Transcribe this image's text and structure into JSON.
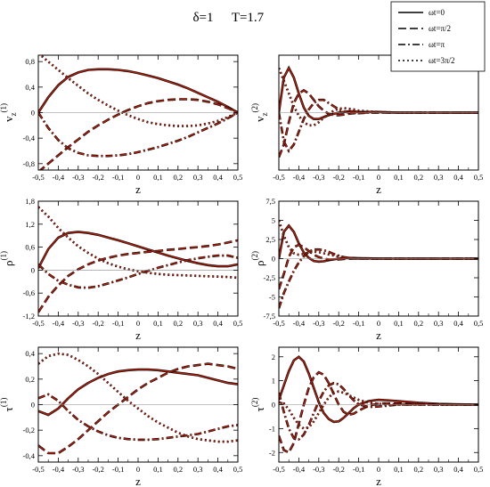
{
  "title": {
    "delta": "δ=1",
    "temp": "T=1.7"
  },
  "legend": [
    {
      "label": "ωt=0",
      "dash": "solid"
    },
    {
      "label": "ωt=π/2",
      "dash": "dashed"
    },
    {
      "label": "ωt=π",
      "dash": "dashdot"
    },
    {
      "label": "ωt=3π/2",
      "dash": "dotted"
    }
  ],
  "colors": {
    "black": "#000000",
    "red": "#b2220e",
    "band": "#f6c8ee"
  },
  "chart_data": [
    {
      "id": "p11",
      "type": "line",
      "xlabel": "z",
      "ylabel": "v",
      "ylabel_sub": "z",
      "ylabel_sup": "(1)",
      "xlim": [
        -0.5,
        0.5
      ],
      "ylim": [
        -0.9,
        0.9
      ],
      "xticks": [
        "-0,5",
        "-0,4",
        "-0,3",
        "-0,2",
        "-0,1",
        "0",
        "0,1",
        "0,2",
        "0,3",
        "0,4",
        "0,5"
      ],
      "yticks": [
        "-0,8",
        "-0,4",
        "0",
        "0,4",
        "0,8"
      ],
      "x": [
        -0.5,
        -0.45,
        -0.4,
        -0.35,
        -0.3,
        -0.25,
        -0.2,
        -0.15,
        -0.1,
        -0.05,
        0,
        0.05,
        0.1,
        0.15,
        0.2,
        0.25,
        0.3,
        0.35,
        0.4,
        0.45,
        0.5
      ],
      "series": [
        {
          "dash": "solid",
          "values": [
            0,
            0.24,
            0.43,
            0.56,
            0.63,
            0.67,
            0.68,
            0.68,
            0.67,
            0.65,
            0.62,
            0.58,
            0.54,
            0.49,
            0.44,
            0.38,
            0.31,
            0.24,
            0.17,
            0.09,
            0
          ]
        },
        {
          "dash": "dashed",
          "values": [
            -0.93,
            -0.8,
            -0.67,
            -0.54,
            -0.42,
            -0.3,
            -0.2,
            -0.11,
            -0.03,
            0.04,
            0.1,
            0.15,
            0.18,
            0.2,
            0.21,
            0.21,
            0.2,
            0.17,
            0.13,
            0.07,
            0
          ]
        },
        {
          "dash": "dashdot",
          "values": [
            0,
            -0.24,
            -0.43,
            -0.56,
            -0.63,
            -0.67,
            -0.68,
            -0.68,
            -0.67,
            -0.65,
            -0.62,
            -0.58,
            -0.54,
            -0.49,
            -0.44,
            -0.38,
            -0.31,
            -0.24,
            -0.17,
            -0.09,
            0
          ]
        },
        {
          "dash": "dotted",
          "values": [
            0.93,
            0.8,
            0.67,
            0.54,
            0.42,
            0.3,
            0.2,
            0.11,
            0.03,
            -0.04,
            -0.1,
            -0.15,
            -0.18,
            -0.2,
            -0.21,
            -0.21,
            -0.2,
            -0.17,
            -0.13,
            -0.07,
            0
          ]
        }
      ]
    },
    {
      "id": "p12",
      "type": "line",
      "xlabel": "z",
      "ylabel": "v",
      "ylabel_sub": "z",
      "ylabel_sup": "(2)",
      "xlim": [
        -0.5,
        0.5
      ],
      "ylim": [
        -0.9,
        0.9
      ],
      "xticks": [
        "-0,5",
        "-0,4",
        "-0,3",
        "-0,2",
        "-0,1",
        "0",
        "0,1",
        "0,2",
        "0,3",
        "0,4",
        "0,5"
      ],
      "yticks": [],
      "x": [
        -0.5,
        -0.475,
        -0.45,
        -0.425,
        -0.4,
        -0.375,
        -0.35,
        -0.325,
        -0.3,
        -0.275,
        -0.25,
        -0.225,
        -0.2,
        -0.175,
        -0.15,
        -0.125,
        -0.1,
        -0.05,
        0,
        0.1,
        0.2,
        0.3,
        0.4,
        0.5
      ],
      "series": [
        {
          "dash": "solid",
          "values": [
            0,
            0.55,
            0.7,
            0.55,
            0.3,
            0.08,
            -0.05,
            -0.1,
            -0.1,
            -0.07,
            -0.04,
            -0.02,
            0,
            0.01,
            0.02,
            0.02,
            0.01,
            0.01,
            0.01,
            0,
            0,
            0,
            0,
            0
          ]
        },
        {
          "dash": "dashed",
          "values": [
            -0.7,
            -0.5,
            -0.15,
            0.15,
            0.3,
            0.35,
            0.3,
            0.2,
            0.1,
            0.03,
            -0.02,
            -0.04,
            -0.04,
            -0.03,
            -0.02,
            -0.01,
            0,
            0,
            0,
            0,
            0,
            0,
            0,
            0
          ]
        },
        {
          "dash": "dashdot",
          "values": [
            0,
            -0.45,
            -0.6,
            -0.5,
            -0.3,
            -0.1,
            0.05,
            0.15,
            0.2,
            0.2,
            0.15,
            0.1,
            0.05,
            0.02,
            0,
            -0.01,
            -0.01,
            0,
            0,
            0,
            0,
            0,
            0,
            0
          ]
        },
        {
          "dash": "dotted",
          "values": [
            0.7,
            0.5,
            0.3,
            0.1,
            -0.05,
            -0.15,
            -0.2,
            -0.2,
            -0.15,
            -0.08,
            -0.02,
            0.03,
            0.06,
            0.07,
            0.06,
            0.05,
            0.03,
            0.02,
            0.01,
            0,
            0,
            0,
            0,
            0
          ]
        }
      ]
    },
    {
      "id": "p21",
      "type": "line",
      "xlabel": "z",
      "ylabel": "ρ",
      "ylabel_sub": "",
      "ylabel_sup": "(1)",
      "xlim": [
        -0.5,
        0.5
      ],
      "ylim": [
        -1.2,
        1.8
      ],
      "xticks": [
        "-0,5",
        "-0,4",
        "-0,3",
        "-0,2",
        "-0,1",
        "0",
        "0,1",
        "0,2",
        "0,3",
        "0,4",
        "0,5"
      ],
      "yticks": [
        "-1,2",
        "-0,6",
        "0",
        "0,6",
        "1,2",
        "1,8"
      ],
      "x": [
        -0.5,
        -0.45,
        -0.4,
        -0.35,
        -0.3,
        -0.25,
        -0.2,
        -0.15,
        -0.1,
        -0.05,
        0,
        0.05,
        0.1,
        0.15,
        0.2,
        0.25,
        0.3,
        0.35,
        0.4,
        0.45,
        0.5
      ],
      "series": [
        {
          "dash": "solid",
          "values": [
            0.05,
            0.55,
            0.85,
            0.97,
            1,
            0.97,
            0.92,
            0.85,
            0.78,
            0.7,
            0.62,
            0.54,
            0.46,
            0.38,
            0.31,
            0.24,
            0.18,
            0.13,
            0.1,
            0.1,
            0.15
          ]
        },
        {
          "dash": "dashed",
          "values": [
            -1.1,
            -0.7,
            -0.4,
            -0.15,
            0.02,
            0.15,
            0.25,
            0.32,
            0.38,
            0.42,
            0.45,
            0.48,
            0.5,
            0.53,
            0.55,
            0.58,
            0.6,
            0.63,
            0.67,
            0.72,
            0.78
          ]
        },
        {
          "dash": "dashdot",
          "values": [
            0.15,
            -0.1,
            -0.28,
            -0.38,
            -0.45,
            -0.46,
            -0.42,
            -0.35,
            -0.27,
            -0.19,
            -0.1,
            -0.02,
            0.06,
            0.13,
            0.2,
            0.26,
            0.31,
            0.35,
            0.38,
            0.38,
            0.32
          ]
        },
        {
          "dash": "dotted",
          "values": [
            1.65,
            1.4,
            1.1,
            0.85,
            0.62,
            0.45,
            0.3,
            0.18,
            0.09,
            0.02,
            -0.03,
            -0.07,
            -0.1,
            -0.12,
            -0.13,
            -0.14,
            -0.15,
            -0.16,
            -0.17,
            -0.18,
            -0.2
          ]
        }
      ]
    },
    {
      "id": "p22",
      "type": "line",
      "xlabel": "z",
      "ylabel": "ρ",
      "ylabel_sub": "",
      "ylabel_sup": "(2)",
      "xlim": [
        -0.5,
        0.5
      ],
      "ylim": [
        -7.5,
        7.5
      ],
      "xticks": [
        "-0,5",
        "-0,4",
        "-0,3",
        "-0,2",
        "-0,1",
        "0",
        "0,1",
        "0,2",
        "0,3",
        "0,4",
        "0,5"
      ],
      "yticks": [
        "-7,5",
        "-5",
        "-2,5",
        "0",
        "2,5",
        "5",
        "7,5"
      ],
      "x": [
        -0.5,
        -0.475,
        -0.45,
        -0.425,
        -0.4,
        -0.375,
        -0.35,
        -0.325,
        -0.3,
        -0.275,
        -0.25,
        -0.225,
        -0.2,
        -0.175,
        -0.15,
        -0.125,
        -0.1,
        -0.05,
        0,
        0.1,
        0.2,
        0.3,
        0.4,
        0.5
      ],
      "series": [
        {
          "dash": "solid",
          "values": [
            0,
            3.5,
            4.3,
            3.5,
            2,
            0.8,
            0.1,
            -0.3,
            -0.4,
            -0.35,
            -0.2,
            -0.1,
            0,
            0.05,
            0.08,
            0.08,
            0.06,
            0.03,
            0.01,
            0,
            0,
            0,
            0,
            0
          ]
        },
        {
          "dash": "dashed",
          "values": [
            -4,
            -2,
            0.2,
            1.5,
            1.8,
            1.5,
            1,
            0.5,
            0.2,
            0,
            -0.1,
            -0.12,
            -0.1,
            -0.05,
            -0.02,
            0,
            0.01,
            0.01,
            0,
            0,
            0,
            0,
            0,
            0
          ]
        },
        {
          "dash": "dashdot",
          "values": [
            -6.5,
            -4.5,
            -3,
            -1.6,
            -0.5,
            0.3,
            0.9,
            1.2,
            1.2,
            1.1,
            0.9,
            0.6,
            0.4,
            0.2,
            0.1,
            0.05,
            0,
            0,
            0,
            0,
            0,
            0,
            0,
            0
          ]
        },
        {
          "dash": "dotted",
          "values": [
            5,
            3,
            1.5,
            0.7,
            0.5,
            0.6,
            0.8,
            0.9,
            0.85,
            0.7,
            0.55,
            0.4,
            0.28,
            0.18,
            0.1,
            0.05,
            0.03,
            0.01,
            0,
            0,
            0,
            0,
            0,
            0
          ]
        }
      ]
    },
    {
      "id": "p31",
      "type": "line",
      "xlabel": "z",
      "ylabel": "τ",
      "ylabel_sub": "",
      "ylabel_sup": "(1)",
      "xlim": [
        -0.5,
        0.5
      ],
      "ylim": [
        -0.45,
        0.45
      ],
      "xticks": [
        "-0,5",
        "-0,4",
        "-0,3",
        "-0,2",
        "-0,1",
        "0",
        "0,1",
        "0,2",
        "0,3",
        "0,4",
        "0,5"
      ],
      "yticks": [
        "-0,4",
        "-0,2",
        "0",
        "0,2",
        "0,4"
      ],
      "x": [
        -0.5,
        -0.45,
        -0.4,
        -0.35,
        -0.3,
        -0.25,
        -0.2,
        -0.15,
        -0.1,
        -0.05,
        0,
        0.05,
        0.1,
        0.15,
        0.2,
        0.25,
        0.3,
        0.35,
        0.4,
        0.45,
        0.5
      ],
      "series": [
        {
          "dash": "solid",
          "values": [
            -0.05,
            -0.08,
            -0.03,
            0.05,
            0.12,
            0.17,
            0.21,
            0.24,
            0.26,
            0.27,
            0.275,
            0.275,
            0.27,
            0.26,
            0.25,
            0.24,
            0.23,
            0.21,
            0.19,
            0.17,
            0.16
          ]
        },
        {
          "dash": "dashed",
          "values": [
            -0.32,
            -0.38,
            -0.38,
            -0.33,
            -0.27,
            -0.2,
            -0.13,
            -0.06,
            0,
            0.06,
            0.12,
            0.17,
            0.21,
            0.25,
            0.28,
            0.3,
            0.31,
            0.32,
            0.31,
            0.3,
            0.28
          ]
        },
        {
          "dash": "dashdot",
          "values": [
            0.05,
            0.08,
            0.03,
            -0.05,
            -0.12,
            -0.17,
            -0.21,
            -0.24,
            -0.26,
            -0.27,
            -0.275,
            -0.275,
            -0.27,
            -0.26,
            -0.25,
            -0.24,
            -0.23,
            -0.21,
            -0.19,
            -0.17,
            -0.16
          ]
        },
        {
          "dash": "dotted",
          "values": [
            0.32,
            0.38,
            0.4,
            0.39,
            0.35,
            0.3,
            0.24,
            0.17,
            0.1,
            0.03,
            -0.03,
            -0.09,
            -0.14,
            -0.18,
            -0.22,
            -0.25,
            -0.27,
            -0.28,
            -0.29,
            -0.29,
            -0.28
          ]
        }
      ]
    },
    {
      "id": "p32",
      "type": "line",
      "xlabel": "z",
      "ylabel": "τ",
      "ylabel_sub": "",
      "ylabel_sup": "(2)",
      "xlim": [
        -0.5,
        0.5
      ],
      "ylim": [
        -2.4,
        2.4
      ],
      "xticks": [
        "-0,5",
        "-0,4",
        "-0,3",
        "-0,2",
        "-0,1",
        "0",
        "0,1",
        "0,2",
        "0,3",
        "0,4",
        "0,5"
      ],
      "yticks": [
        "-2",
        "-1",
        "0",
        "1",
        "2"
      ],
      "x": [
        -0.5,
        -0.475,
        -0.45,
        -0.425,
        -0.4,
        -0.375,
        -0.35,
        -0.325,
        -0.3,
        -0.275,
        -0.25,
        -0.225,
        -0.2,
        -0.175,
        -0.15,
        -0.125,
        -0.1,
        -0.05,
        0,
        0.1,
        0.2,
        0.3,
        0.4,
        0.5
      ],
      "series": [
        {
          "dash": "solid",
          "values": [
            0.2,
            0.8,
            1.4,
            1.85,
            2.0,
            1.8,
            1.3,
            0.7,
            0.1,
            -0.35,
            -0.6,
            -0.72,
            -0.7,
            -0.55,
            -0.35,
            -0.15,
            0,
            0.15,
            0.2,
            0.15,
            0.08,
            0.03,
            0.01,
            0
          ]
        },
        {
          "dash": "dashed",
          "values": [
            -1.3,
            -1.9,
            -2.0,
            -1.6,
            -0.8,
            0,
            0.7,
            1.15,
            1.35,
            1.25,
            0.9,
            0.45,
            0,
            -0.3,
            -0.42,
            -0.38,
            -0.25,
            -0.05,
            0.05,
            0.05,
            0.02,
            0,
            0,
            0
          ]
        },
        {
          "dash": "dashdot",
          "values": [
            0.5,
            -0.3,
            -1.0,
            -1.4,
            -1.45,
            -1.25,
            -0.85,
            -0.35,
            0.15,
            0.55,
            0.8,
            0.9,
            0.85,
            0.65,
            0.4,
            0.18,
            0.02,
            -0.1,
            -0.08,
            0,
            0,
            0,
            0,
            0
          ]
        },
        {
          "dash": "dotted",
          "values": [
            0.1,
            0.05,
            -0.2,
            -0.55,
            -0.85,
            -1.0,
            -0.95,
            -0.7,
            -0.35,
            0,
            0.3,
            0.5,
            0.55,
            0.5,
            0.4,
            0.3,
            0.2,
            0.08,
            0.03,
            0,
            0,
            0,
            0,
            0
          ]
        }
      ]
    }
  ]
}
